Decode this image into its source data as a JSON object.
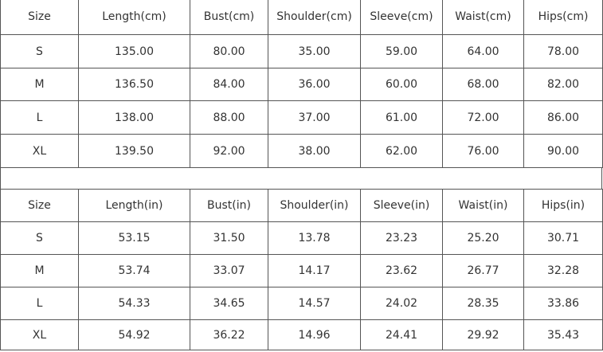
{
  "tables": [
    {
      "header": [
        "Size",
        "Length(cm)",
        "Bust(cm)",
        "Shoulder(cm)",
        "Sleeve(cm)",
        "Waist(cm)",
        "Hips(cm)"
      ],
      "rows": [
        [
          "S",
          "135.00",
          "80.00",
          "35.00",
          "59.00",
          "64.00",
          "78.00"
        ],
        [
          "M",
          "136.50",
          "84.00",
          "36.00",
          "60.00",
          "68.00",
          "82.00"
        ],
        [
          "L",
          "138.00",
          "88.00",
          "37.00",
          "61.00",
          "72.00",
          "86.00"
        ],
        [
          "XL",
          "139.50",
          "92.00",
          "38.00",
          "62.00",
          "76.00",
          "90.00"
        ]
      ]
    },
    {
      "header": [
        "Size",
        "Length(in)",
        "Bust(in)",
        "Shoulder(in)",
        "Sleeve(in)",
        "Waist(in)",
        "Hips(in)"
      ],
      "rows": [
        [
          "S",
          "53.15",
          "31.50",
          "13.78",
          "23.23",
          "25.20",
          "30.71"
        ],
        [
          "M",
          "53.74",
          "33.07",
          "14.17",
          "23.62",
          "26.77",
          "32.28"
        ],
        [
          "L",
          "54.33",
          "34.65",
          "14.57",
          "24.02",
          "28.35",
          "33.86"
        ],
        [
          "XL",
          "54.92",
          "36.22",
          "14.96",
          "24.41",
          "29.92",
          "35.43"
        ]
      ]
    }
  ]
}
